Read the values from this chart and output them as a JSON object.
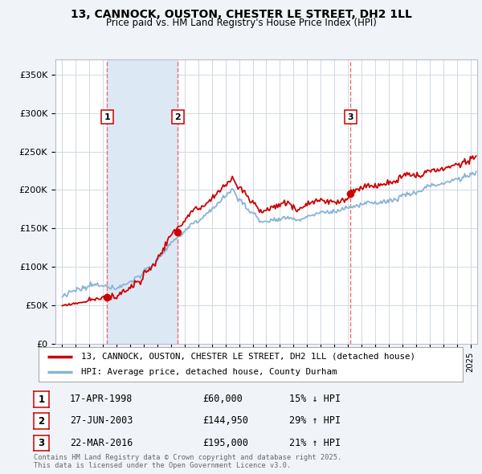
{
  "title": "13, CANNOCK, OUSTON, CHESTER LE STREET, DH2 1LL",
  "subtitle": "Price paid vs. HM Land Registry's House Price Index (HPI)",
  "sale_label": "13, CANNOCK, OUSTON, CHESTER LE STREET, DH2 1LL (detached house)",
  "hpi_label": "HPI: Average price, detached house, County Durham",
  "sale_color": "#cc0000",
  "hpi_color": "#8ab4d4",
  "marker_color": "#cc0000",
  "vline_color": "#e87070",
  "shade_color": "#dde8f5",
  "annotation_border": "#cc0000",
  "background_color": "#f0f4f8",
  "plot_bg_color": "#ffffff",
  "grid_color": "#d0d8e4",
  "purchases": [
    {
      "num": 1,
      "date_str": "17-APR-1998",
      "price": 60000,
      "pct": "15%",
      "dir": "↓",
      "x": 1998.3
    },
    {
      "num": 2,
      "date_str": "27-JUN-2003",
      "price": 144950,
      "pct": "29%",
      "dir": "↑",
      "x": 2003.5
    },
    {
      "num": 3,
      "date_str": "22-MAR-2016",
      "price": 195000,
      "pct": "21%",
      "dir": "↑",
      "x": 2016.2
    }
  ],
  "footer": "Contains HM Land Registry data © Crown copyright and database right 2025.\nThis data is licensed under the Open Government Licence v3.0.",
  "xlim": [
    1994.5,
    2025.5
  ],
  "ylim": [
    0,
    370000
  ],
  "yticks": [
    0,
    50000,
    100000,
    150000,
    200000,
    250000,
    300000,
    350000
  ],
  "ytick_labels": [
    "£0",
    "£50K",
    "£100K",
    "£150K",
    "£200K",
    "£250K",
    "£300K",
    "£350K"
  ]
}
